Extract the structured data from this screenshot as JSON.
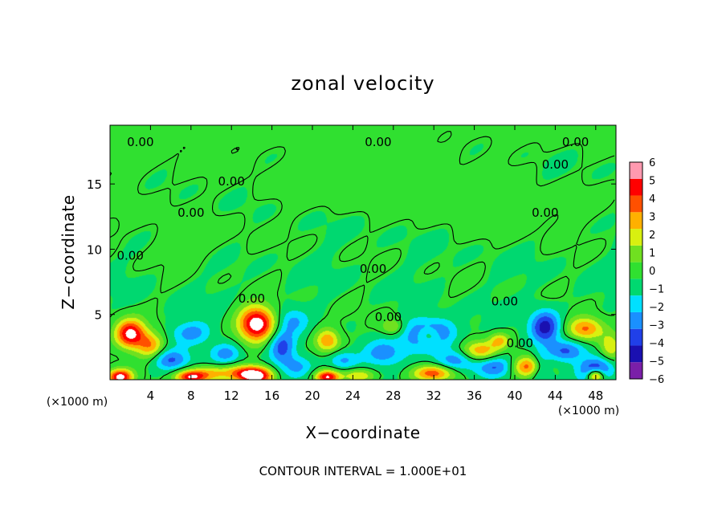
{
  "chart_data": {
    "type": "heatmap",
    "title": "zonal velocity",
    "xlabel": "X−coordinate",
    "ylabel": "Z−coordinate",
    "x_unit_left": "(×1000 m)",
    "x_unit_right": "(×1000 m)",
    "xlim": [
      0,
      50
    ],
    "ylim": [
      0,
      19.5
    ],
    "x_ticks": [
      4,
      8,
      12,
      16,
      20,
      24,
      28,
      32,
      36,
      40,
      44,
      48
    ],
    "x_tick_labels": [
      "4",
      "8",
      "12",
      "16",
      "20",
      "24",
      "28",
      "32",
      "36",
      "40",
      "44",
      "48"
    ],
    "y_ticks": [
      5,
      10,
      15
    ],
    "y_tick_labels": [
      "5",
      "10",
      "15"
    ],
    "colorbar": {
      "min": -6,
      "max": 6,
      "levels": [
        -6,
        -5,
        -4,
        -3,
        -2,
        -1,
        0,
        1,
        2,
        3,
        4,
        5,
        6
      ],
      "labels": [
        "−6",
        "−5",
        "−4",
        "−3",
        "−2",
        "−1",
        "0",
        "1",
        "2",
        "3",
        "4",
        "5",
        "6"
      ],
      "colors": [
        "#7a1fa8",
        "#1a10b0",
        "#2040e8",
        "#1a90ff",
        "#00e0ff",
        "#00d870",
        "#30e030",
        "#70e020",
        "#d8f010",
        "#ffb000",
        "#ff5000",
        "#ff0000",
        "#ff9ab0"
      ]
    },
    "contour_labels": [
      {
        "x": 3,
        "z": 18.2,
        "text": "0.00"
      },
      {
        "x": 26.5,
        "z": 18.2,
        "text": "0.00"
      },
      {
        "x": 46,
        "z": 18.2,
        "text": "0.00"
      },
      {
        "x": 44,
        "z": 16.5,
        "text": "0.00"
      },
      {
        "x": 12,
        "z": 15.2,
        "text": "0.00"
      },
      {
        "x": 8,
        "z": 12.8,
        "text": "0.00"
      },
      {
        "x": 43,
        "z": 12.8,
        "text": "0.00"
      },
      {
        "x": 2,
        "z": 9.5,
        "text": "0.00"
      },
      {
        "x": 26,
        "z": 8.5,
        "text": "0.00"
      },
      {
        "x": 14,
        "z": 6.2,
        "text": "0.00"
      },
      {
        "x": 39,
        "z": 6.0,
        "text": "0.00"
      },
      {
        "x": 27.5,
        "z": 4.8,
        "text": "0.00"
      },
      {
        "x": 40.5,
        "z": 2.8,
        "text": "0.00"
      }
    ],
    "features": [
      {
        "x": 0,
        "z": 19.5,
        "v": 0.6,
        "sx": 60,
        "sz": 2.5
      },
      {
        "x": 25,
        "z": 15,
        "v": 0.8,
        "sx": 10,
        "sz": 2
      },
      {
        "x": 40,
        "z": 13,
        "v": 0.6,
        "sx": 8,
        "sz": 2
      },
      {
        "x": 9,
        "z": 11,
        "v": 0.4,
        "sx": 6,
        "sz": 2
      },
      {
        "x": 2,
        "z": 14,
        "v": 0.4,
        "sx": 4,
        "sz": 3
      },
      {
        "x": 2,
        "z": 3.5,
        "v": 6.5,
        "sx": 1.5,
        "sz": 1.1
      },
      {
        "x": 1,
        "z": 0.2,
        "v": 6.5,
        "sx": 1.2,
        "sz": 0.6
      },
      {
        "x": 4,
        "z": 2.6,
        "v": 3.5,
        "sx": 1.3,
        "sz": 1
      },
      {
        "x": 6,
        "z": 1.5,
        "v": -3,
        "sx": 1.8,
        "sz": 0.8
      },
      {
        "x": 8,
        "z": 3.6,
        "v": -2.5,
        "sx": 2,
        "sz": 0.9
      },
      {
        "x": 10,
        "z": 0.5,
        "v": 3,
        "sx": 2.2,
        "sz": 0.6
      },
      {
        "x": 8,
        "z": 0.2,
        "v": 5.5,
        "sx": 1.5,
        "sz": 0.5
      },
      {
        "x": 13,
        "z": 0.5,
        "v": 3,
        "sx": 1.5,
        "sz": 0.6
      },
      {
        "x": 14.5,
        "z": 4.3,
        "v": 7,
        "sx": 1.8,
        "sz": 1.3
      },
      {
        "x": 14.5,
        "z": 0.3,
        "v": 7,
        "sx": 1.6,
        "sz": 0.7
      },
      {
        "x": 11.5,
        "z": 2,
        "v": -2.5,
        "sx": 1.5,
        "sz": 0.8
      },
      {
        "x": 17,
        "z": 2.5,
        "v": -3.5,
        "sx": 1.3,
        "sz": 1.3
      },
      {
        "x": 18,
        "z": 4.5,
        "v": -2,
        "sx": 1.5,
        "sz": 1
      },
      {
        "x": 18.5,
        "z": 1,
        "v": -2,
        "sx": 1.5,
        "sz": 0.8
      },
      {
        "x": 21.5,
        "z": 3,
        "v": 4,
        "sx": 1.2,
        "sz": 0.9
      },
      {
        "x": 21.5,
        "z": 0.2,
        "v": 6,
        "sx": 1.2,
        "sz": 0.5
      },
      {
        "x": 23,
        "z": 1.5,
        "v": -2.5,
        "sx": 1.5,
        "sz": 0.7
      },
      {
        "x": 24.5,
        "z": 0.3,
        "v": 3,
        "sx": 1.5,
        "sz": 0.5
      },
      {
        "x": 28,
        "z": 4,
        "v": 2.5,
        "sx": 1.2,
        "sz": 0.7
      },
      {
        "x": 27,
        "z": 2,
        "v": -2.5,
        "sx": 2,
        "sz": 1
      },
      {
        "x": 31.5,
        "z": 3.5,
        "v": -5,
        "sx": 2.5,
        "sz": 1.1
      },
      {
        "x": 31.5,
        "z": 3.4,
        "v": 4,
        "sx": 1.3,
        "sz": 0.7
      },
      {
        "x": 32,
        "z": 0.5,
        "v": 4.5,
        "sx": 2,
        "sz": 0.6
      },
      {
        "x": 34,
        "z": 1.5,
        "v": -2.5,
        "sx": 2,
        "sz": 0.8
      },
      {
        "x": 36.5,
        "z": 2.2,
        "v": 4,
        "sx": 1.8,
        "sz": 0.8
      },
      {
        "x": 38,
        "z": 1,
        "v": -3,
        "sx": 2,
        "sz": 0.8
      },
      {
        "x": 38.5,
        "z": 3,
        "v": 3,
        "sx": 1,
        "sz": 0.6
      },
      {
        "x": 41.5,
        "z": 1,
        "v": 5,
        "sx": 1.8,
        "sz": 0.8
      },
      {
        "x": 43,
        "z": 4,
        "v": -4.5,
        "sx": 1.5,
        "sz": 1.3
      },
      {
        "x": 42.5,
        "z": 1,
        "v": -3.5,
        "sx": 1,
        "sz": 1
      },
      {
        "x": 45,
        "z": 2.2,
        "v": -3,
        "sx": 2,
        "sz": 0.8
      },
      {
        "x": 47,
        "z": 3.9,
        "v": 4.5,
        "sx": 1.8,
        "sz": 0.9
      },
      {
        "x": 48,
        "z": 0.8,
        "v": -4,
        "sx": 1.8,
        "sz": 0.9
      },
      {
        "x": 48,
        "z": 0.3,
        "v": 6,
        "sx": 0.8,
        "sz": 0.5
      },
      {
        "x": 49.5,
        "z": 2.5,
        "v": 3,
        "sx": 1,
        "sz": 1
      }
    ]
  },
  "footer": {
    "contour_interval": "CONTOUR INTERVAL = 1.000E+01"
  }
}
